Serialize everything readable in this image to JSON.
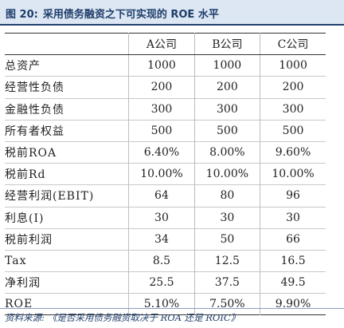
{
  "title": {
    "label": "图 20:",
    "text": "采用债务融资之下可实现的 ROE 水平"
  },
  "table": {
    "headers": [
      "",
      "A公司",
      "B公司",
      "C公司"
    ],
    "rows": [
      {
        "label": "总资产",
        "a": "1000",
        "b": "1000",
        "c": "1000"
      },
      {
        "label": "经营性负债",
        "a": "200",
        "b": "200",
        "c": "200"
      },
      {
        "label": "金融性负债",
        "a": "300",
        "b": "300",
        "c": "300"
      },
      {
        "label": "所有者权益",
        "a": "500",
        "b": "500",
        "c": "500"
      },
      {
        "label": "税前ROA",
        "a": "6.40%",
        "b": "8.00%",
        "c": "9.60%"
      },
      {
        "label": "税前Rd",
        "a": "10.00%",
        "b": "10.00%",
        "c": "10.00%"
      },
      {
        "label": "经营利润(EBIT)",
        "a": "64",
        "b": "80",
        "c": "96"
      },
      {
        "label": "利息(I)",
        "a": "30",
        "b": "30",
        "c": "30"
      },
      {
        "label": "税前利润",
        "a": "34",
        "b": "50",
        "c": "66"
      },
      {
        "label": "Tax",
        "a": "8.5",
        "b": "12.5",
        "c": "16.5"
      },
      {
        "label": "净利润",
        "a": "25.5",
        "b": "37.5",
        "c": "49.5"
      },
      {
        "label": "ROE",
        "a": "5.10%",
        "b": "7.50%",
        "c": "9.90%"
      }
    ]
  },
  "source": {
    "label": "资料来源:",
    "text": "《是否采用债务融资取决于 ROA 还是 ROIC》"
  }
}
